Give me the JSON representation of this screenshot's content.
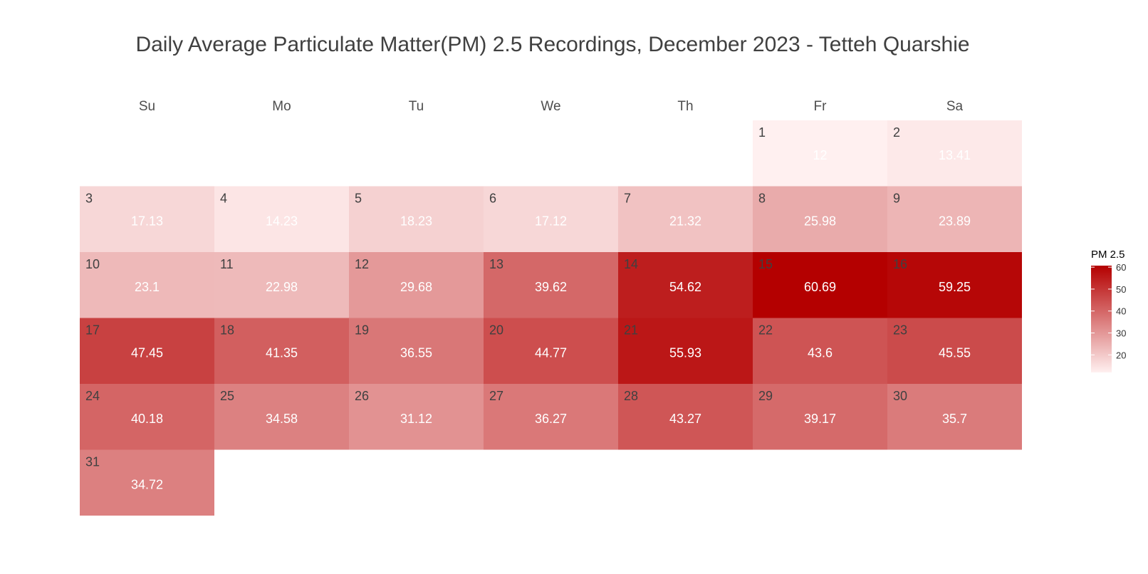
{
  "chart_data": {
    "type": "heatmap",
    "title": "Daily Average Particulate Matter(PM) 2.5 Recordings, December 2023 - Tetteh Quarshie",
    "weekdays": [
      "Su",
      "Mo",
      "Tu",
      "We",
      "Th",
      "Fr",
      "Sa"
    ],
    "first_weekday_index": 5,
    "days": [
      {
        "day": 1,
        "value": 12,
        "label": "12"
      },
      {
        "day": 2,
        "value": 13.41,
        "label": "13.41"
      },
      {
        "day": 3,
        "value": 17.13,
        "label": "17.13"
      },
      {
        "day": 4,
        "value": 14.23,
        "label": "14.23"
      },
      {
        "day": 5,
        "value": 18.23,
        "label": "18.23"
      },
      {
        "day": 6,
        "value": 17.12,
        "label": "17.12"
      },
      {
        "day": 7,
        "value": 21.32,
        "label": "21.32"
      },
      {
        "day": 8,
        "value": 25.98,
        "label": "25.98"
      },
      {
        "day": 9,
        "value": 23.89,
        "label": "23.89"
      },
      {
        "day": 10,
        "value": 23.1,
        "label": "23.1"
      },
      {
        "day": 11,
        "value": 22.98,
        "label": "22.98"
      },
      {
        "day": 12,
        "value": 29.68,
        "label": "29.68"
      },
      {
        "day": 13,
        "value": 39.62,
        "label": "39.62"
      },
      {
        "day": 14,
        "value": 54.62,
        "label": "54.62"
      },
      {
        "day": 15,
        "value": 60.69,
        "label": "60.69"
      },
      {
        "day": 16,
        "value": 59.25,
        "label": "59.25"
      },
      {
        "day": 17,
        "value": 47.45,
        "label": "47.45"
      },
      {
        "day": 18,
        "value": 41.35,
        "label": "41.35"
      },
      {
        "day": 19,
        "value": 36.55,
        "label": "36.55"
      },
      {
        "day": 20,
        "value": 44.77,
        "label": "44.77"
      },
      {
        "day": 21,
        "value": 55.93,
        "label": "55.93"
      },
      {
        "day": 22,
        "value": 43.6,
        "label": "43.6"
      },
      {
        "day": 23,
        "value": 45.55,
        "label": "45.55"
      },
      {
        "day": 24,
        "value": 40.18,
        "label": "40.18"
      },
      {
        "day": 25,
        "value": 34.58,
        "label": "34.58"
      },
      {
        "day": 26,
        "value": 31.12,
        "label": "31.12"
      },
      {
        "day": 27,
        "value": 36.27,
        "label": "36.27"
      },
      {
        "day": 28,
        "value": 43.27,
        "label": "43.27"
      },
      {
        "day": 29,
        "value": 39.17,
        "label": "39.17"
      },
      {
        "day": 30,
        "value": 35.7,
        "label": "35.7"
      },
      {
        "day": 31,
        "value": 34.72,
        "label": "34.72"
      }
    ],
    "legend": {
      "title": "PM 2.5",
      "ticks": [
        20,
        30,
        40,
        50,
        60
      ],
      "range": [
        12,
        60.69
      ],
      "placement": "right"
    },
    "color_scale": {
      "low": "#fff0f0",
      "high": "#b40000"
    },
    "text_color": "#ffffff",
    "day_number_color": "#404040",
    "header_color": "#4d4d4d",
    "title_color": "#404040"
  }
}
